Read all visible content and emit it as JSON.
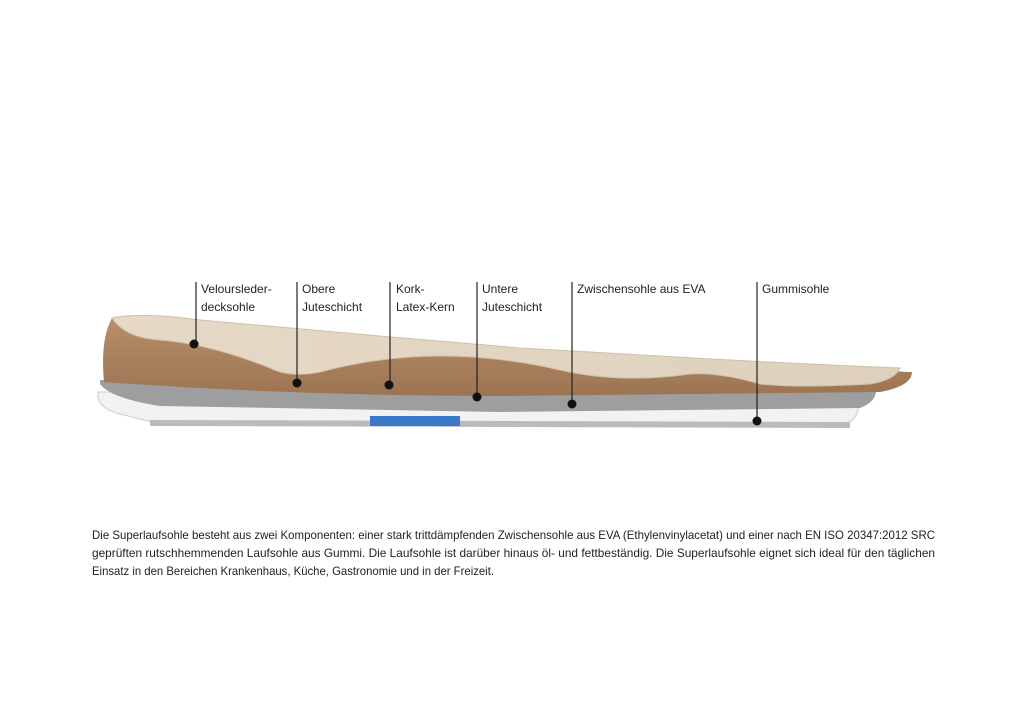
{
  "labels": [
    {
      "lines": [
        "Veloursleder-",
        "decksohle"
      ]
    },
    {
      "lines": [
        "Obere",
        "Juteschicht"
      ]
    },
    {
      "lines": [
        "Kork-",
        "Latex-Kern"
      ]
    },
    {
      "lines": [
        "Untere",
        "Juteschicht"
      ]
    },
    {
      "lines": [
        "Zwischensohle aus EVA"
      ]
    },
    {
      "lines": [
        "Gummisohle"
      ]
    }
  ],
  "description": {
    "lines": [
      "Die Superlaufsohle besteht aus zwei Komponenten: einer stark trittdämpfenden Zwischensohle aus EVA (Ethylenvinylacetat) und einer nach EN ISO 20347:2012 SRC",
      "geprüften rutschhemmenden Laufsohle aus Gummi. Die Laufsohle ist darüber hinaus öl- und fettbeständig. Die Superlaufsohle eignet sich ideal für den täglichen",
      "Einsatz in den Bereichen Krankenhaus, Küche, Gastronomie und in der Freizeit."
    ]
  }
}
